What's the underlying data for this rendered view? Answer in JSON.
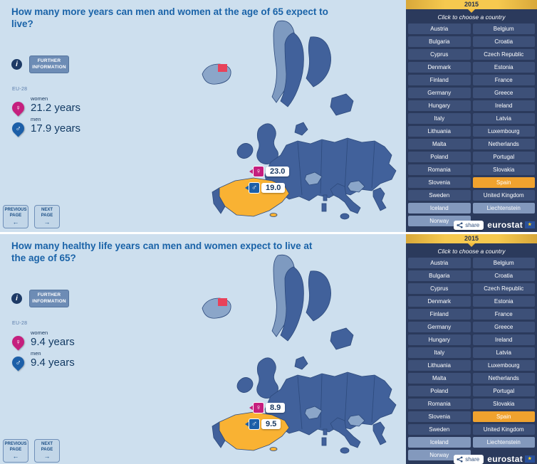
{
  "colors": {
    "background": "#cddfee",
    "title_blue": "#1a63a8",
    "map_eu_blue": "#41619b",
    "map_noneu_blue": "#8ba6c9",
    "spain_highlight": "#f9b233",
    "female_pink": "#c51f7e",
    "male_blue": "#1c5fa8",
    "sidebar_navy": "#2b3a5c",
    "accent_yellow": "#f6c94f"
  },
  "symbols": {
    "female": "♀",
    "male": "♂"
  },
  "info_icon_glyph": "i",
  "info_button_label": "FURTHER INFORMATION",
  "nav": {
    "previous": {
      "label": "PREVIOUS PAGE",
      "arrow": "←"
    },
    "next": {
      "label": "NEXT PAGE",
      "arrow": "→"
    }
  },
  "sidebar": {
    "year": "2015",
    "chooser_label": "Click to choose a country",
    "selected_country": "Spain",
    "non_eu": [
      "Iceland",
      "Liechtenstein",
      "Norway"
    ],
    "countries": [
      [
        "Austria",
        "Belgium"
      ],
      [
        "Bulgaria",
        "Croatia"
      ],
      [
        "Cyprus",
        "Czech Republic"
      ],
      [
        "Denmark",
        "Estonia"
      ],
      [
        "Finland",
        "France"
      ],
      [
        "Germany",
        "Greece"
      ],
      [
        "Hungary",
        "Ireland"
      ],
      [
        "Italy",
        "Latvia"
      ],
      [
        "Lithuania",
        "Luxembourg"
      ],
      [
        "Malta",
        "Netherlands"
      ],
      [
        "Poland",
        "Portugal"
      ],
      [
        "Romania",
        "Slovakia"
      ],
      [
        "Slovenia",
        "Spain"
      ],
      [
        "Sweden",
        "United Kingdom"
      ],
      [
        "Iceland",
        "Liechtenstein"
      ],
      [
        "Norway",
        ""
      ]
    ],
    "share_label": "share",
    "logo_text": "eurostat"
  },
  "panels": [
    {
      "title": "How many more years can men and women at the age of 65 expect to live?",
      "eu_label": "EU-28",
      "women_label": "women",
      "women_value": "21.2 years",
      "men_label": "men",
      "men_value": "17.9 years",
      "callout_women": "23.0",
      "callout_men": "19.0"
    },
    {
      "title": "How many healthy life years can men and women expect to live at the age of 65?",
      "eu_label": "EU-28",
      "women_label": "women",
      "women_value": "9.4 years",
      "men_label": "men",
      "men_value": "9.4 years",
      "callout_women": "8.9",
      "callout_men": "9.5"
    }
  ]
}
